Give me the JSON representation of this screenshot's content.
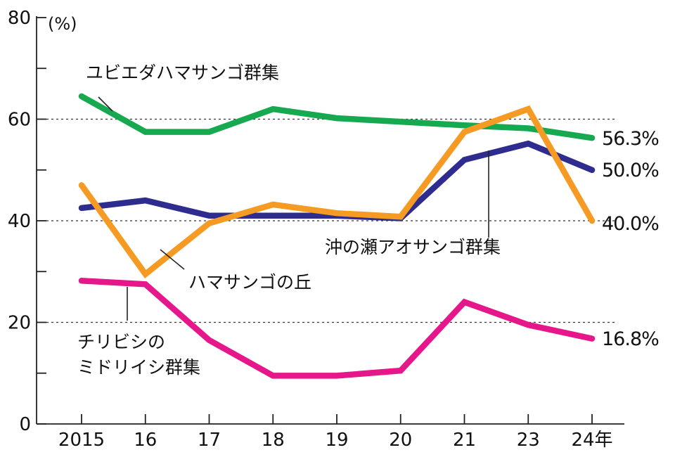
{
  "chart_data": {
    "type": "line",
    "ylabel_unit": "(%)",
    "categories": [
      "2015",
      "16",
      "17",
      "18",
      "19",
      "20",
      "21",
      "23",
      "24年"
    ],
    "ylim": [
      0,
      80
    ],
    "yticks": [
      0,
      20,
      40,
      60,
      80
    ],
    "y_minor_ticks": [
      10,
      30,
      50,
      70
    ],
    "gridlines": [
      20,
      40,
      60
    ],
    "series": [
      {
        "name": "ユビエダハマサンゴ群集",
        "color": "#16a94f",
        "values": [
          64.5,
          57.5,
          57.5,
          62,
          60.2,
          59.5,
          58.8,
          58.2,
          56.3
        ],
        "end_label": "56.3%"
      },
      {
        "name": "沖の瀬アオサンゴ群集",
        "color": "#2e2d8f",
        "values": [
          42.5,
          44,
          41,
          41,
          41,
          40.5,
          52,
          55.2,
          50.0
        ],
        "end_label": "50.0%"
      },
      {
        "name": "ハマサンゴの丘",
        "color": "#f59a23",
        "values": [
          47,
          29.5,
          39.5,
          43.2,
          41.5,
          40.8,
          57.5,
          62,
          40.0
        ],
        "end_label": "40.0%"
      },
      {
        "name": "チリビシのミドリイシ群集",
        "name_lines": [
          "チリビシの",
          "ミドリイシ群集"
        ],
        "color": "#e5178a",
        "values": [
          28.2,
          27.5,
          16.5,
          9.5,
          9.5,
          10.5,
          24,
          19.5,
          16.8
        ],
        "end_label": "16.8%"
      }
    ]
  }
}
